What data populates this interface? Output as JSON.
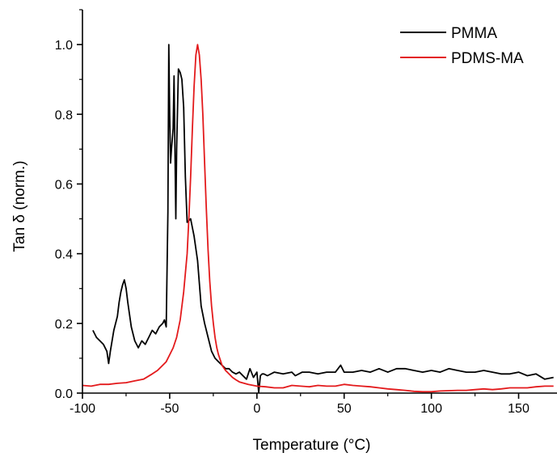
{
  "chart_data": {
    "type": "line",
    "xlabel": "Temperature (°C)",
    "ylabel": "Tan δ (norm.)",
    "xlim": [
      -100,
      172
    ],
    "ylim": [
      0,
      1.1
    ],
    "x_ticks": [
      -100,
      -50,
      0,
      50,
      100,
      150
    ],
    "x_tick_labels": [
      "-100",
      "-50",
      "0",
      "50",
      "100",
      "150"
    ],
    "y_ticks": [
      0,
      0.2,
      0.4,
      0.6,
      0.8,
      1.0
    ],
    "y_tick_labels": [
      "0.0",
      "0.2",
      "0.4",
      "0.6",
      "0.8",
      "1.0"
    ],
    "grid": false,
    "legend_position": "top-right",
    "series": [
      {
        "name": "PMMA",
        "color": "#000000",
        "x": [
          -94,
          -92,
          -90,
          -88,
          -86,
          -85,
          -84,
          -82,
          -80,
          -79,
          -78,
          -77,
          -76,
          -75,
          -74,
          -72,
          -70,
          -68,
          -66,
          -64,
          -62,
          -60,
          -58,
          -56,
          -54,
          -53,
          -52,
          -51,
          -50.5,
          -50,
          -49.5,
          -49,
          -48,
          -47.5,
          -47,
          -46.5,
          -46,
          -45,
          -44,
          -43,
          -42,
          -41,
          -40,
          -38,
          -36,
          -34,
          -32,
          -30,
          -28,
          -26,
          -24,
          -22,
          -20,
          -18,
          -16,
          -14,
          -12,
          -10,
          -8,
          -6,
          -4,
          -2,
          0,
          1,
          2,
          3,
          4,
          6,
          10,
          15,
          20,
          22,
          24,
          26,
          30,
          35,
          40,
          45,
          48,
          50,
          55,
          60,
          65,
          70,
          75,
          80,
          85,
          90,
          95,
          100,
          105,
          110,
          115,
          120,
          125,
          130,
          135,
          140,
          145,
          150,
          155,
          160,
          165,
          170
        ],
        "y": [
          0.18,
          0.16,
          0.15,
          0.14,
          0.12,
          0.085,
          0.12,
          0.18,
          0.22,
          0.26,
          0.29,
          0.31,
          0.325,
          0.3,
          0.26,
          0.19,
          0.15,
          0.13,
          0.15,
          0.14,
          0.16,
          0.18,
          0.17,
          0.19,
          0.2,
          0.21,
          0.19,
          0.52,
          1.0,
          0.8,
          0.66,
          0.7,
          0.76,
          0.91,
          0.7,
          0.5,
          0.7,
          0.93,
          0.92,
          0.9,
          0.82,
          0.62,
          0.49,
          0.5,
          0.45,
          0.38,
          0.25,
          0.2,
          0.16,
          0.12,
          0.1,
          0.09,
          0.08,
          0.07,
          0.07,
          0.06,
          0.055,
          0.06,
          0.05,
          0.04,
          0.07,
          0.045,
          0.06,
          0.002,
          0.05,
          0.055,
          0.055,
          0.05,
          0.06,
          0.055,
          0.06,
          0.05,
          0.055,
          0.06,
          0.06,
          0.055,
          0.06,
          0.06,
          0.08,
          0.06,
          0.06,
          0.065,
          0.06,
          0.07,
          0.06,
          0.07,
          0.07,
          0.065,
          0.06,
          0.065,
          0.06,
          0.07,
          0.065,
          0.06,
          0.06,
          0.065,
          0.06,
          0.055,
          0.055,
          0.06,
          0.05,
          0.055,
          0.04,
          0.045
        ]
      },
      {
        "name": "PDMS-MA",
        "color": "#e31a1c",
        "x": [
          -100,
          -95,
          -90,
          -85,
          -80,
          -75,
          -70,
          -65,
          -60,
          -57,
          -55,
          -52,
          -50,
          -48,
          -46,
          -44,
          -42,
          -40,
          -39,
          -38,
          -37,
          -36,
          -35,
          -34,
          -33,
          -32,
          -31,
          -30,
          -29,
          -28,
          -27,
          -26,
          -25,
          -24,
          -23,
          -22,
          -21,
          -20,
          -18,
          -16,
          -14,
          -12,
          -10,
          -5,
          0,
          5,
          10,
          15,
          20,
          25,
          30,
          35,
          40,
          45,
          50,
          55,
          60,
          65,
          70,
          75,
          80,
          85,
          90,
          95,
          100,
          105,
          110,
          115,
          120,
          125,
          130,
          135,
          140,
          145,
          150,
          155,
          160,
          165,
          170
        ],
        "y": [
          0.022,
          0.02,
          0.025,
          0.025,
          0.028,
          0.03,
          0.035,
          0.04,
          0.055,
          0.065,
          0.075,
          0.09,
          0.11,
          0.13,
          0.16,
          0.21,
          0.29,
          0.4,
          0.5,
          0.62,
          0.76,
          0.88,
          0.97,
          1.0,
          0.97,
          0.9,
          0.8,
          0.66,
          0.53,
          0.41,
          0.32,
          0.25,
          0.2,
          0.16,
          0.13,
          0.11,
          0.095,
          0.08,
          0.065,
          0.055,
          0.045,
          0.038,
          0.032,
          0.025,
          0.02,
          0.018,
          0.015,
          0.015,
          0.022,
          0.02,
          0.018,
          0.022,
          0.02,
          0.02,
          0.025,
          0.022,
          0.02,
          0.018,
          0.015,
          0.012,
          0.01,
          0.008,
          0.005,
          0.004,
          0.004,
          0.006,
          0.007,
          0.008,
          0.008,
          0.01,
          0.012,
          0.01,
          0.012,
          0.015,
          0.015,
          0.015,
          0.018,
          0.02,
          0.02
        ]
      }
    ]
  }
}
